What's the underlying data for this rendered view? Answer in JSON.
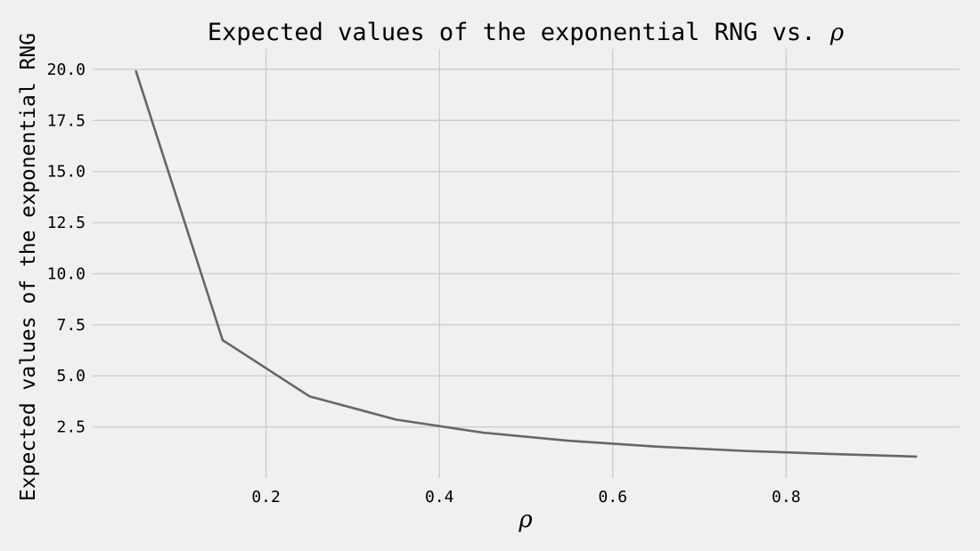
{
  "chart_data": {
    "type": "line",
    "title": "Expected values of the exponential RNG vs.",
    "title_symbol": "ρ",
    "xlabel": "ρ",
    "ylabel": "Expected values of the exponential RNG",
    "xlim": [
      0.0,
      1.0
    ],
    "ylim": [
      0.0,
      21.0
    ],
    "xticks": [
      0.2,
      0.4,
      0.6,
      0.8
    ],
    "xtick_labels": [
      "0.2",
      "0.4",
      "0.6",
      "0.8"
    ],
    "yticks": [
      2.5,
      5.0,
      7.5,
      10.0,
      12.5,
      15.0,
      17.5,
      20.0
    ],
    "ytick_labels": [
      "2.5",
      "5.0",
      "7.5",
      "10.0",
      "12.5",
      "15.0",
      "17.5",
      "20.0"
    ],
    "grid": true,
    "line_color": "#666666",
    "background_color": "#f0f0f0",
    "series": [
      {
        "x": [
          0.05,
          0.15,
          0.25,
          0.35,
          0.45,
          0.55,
          0.65,
          0.75,
          0.85,
          0.95
        ],
        "y": [
          19.9,
          6.75,
          4.0,
          2.86,
          2.22,
          1.82,
          1.54,
          1.33,
          1.18,
          1.05
        ]
      }
    ]
  }
}
